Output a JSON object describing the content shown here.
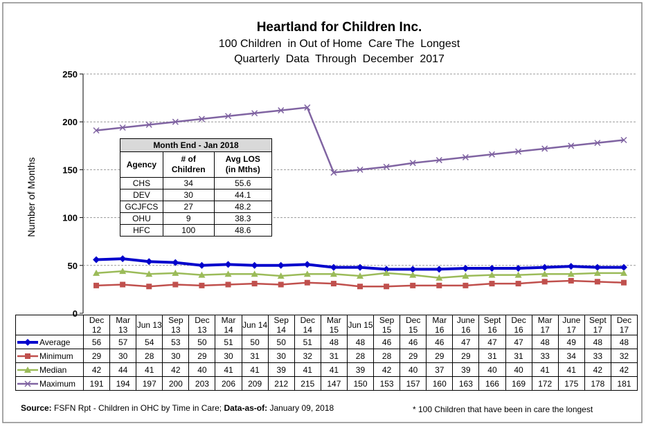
{
  "chart_data": {
    "type": "line",
    "title": "Heartland for Children Inc.",
    "subtitle": [
      "100 Children  in Out of Home  Care The  Longest",
      "Quarterly  Data  Through  December  2017"
    ],
    "y_label": "Number of Months",
    "categories": [
      "Dec\n12",
      "Mar\n13",
      "Jun\n13",
      "Sep\n13",
      "Dec\n13",
      "Mar\n14",
      "Jun\n14",
      "Sep\n14",
      "Dec\n14",
      "Mar\n15",
      "Jun\n15",
      "Sep\n15",
      "Dec\n15",
      "Mar\n16",
      "June\n16",
      "Sept\n16",
      "Dec\n16",
      "Mar\n17",
      "June\n17",
      "Sept\n17",
      "Dec\n17"
    ],
    "series": [
      {
        "name": "Average",
        "color": "#0000cc",
        "marker": "diamond",
        "width": 4,
        "values": [
          56,
          57,
          54,
          53,
          50,
          51,
          50,
          50,
          51,
          48,
          48,
          46,
          46,
          46,
          47,
          47,
          47,
          48,
          49,
          48,
          48
        ]
      },
      {
        "name": "Minimum",
        "color": "#c0504d",
        "marker": "square",
        "width": 2.5,
        "values": [
          29,
          30,
          28,
          30,
          29,
          30,
          31,
          30,
          32,
          31,
          28,
          28,
          29,
          29,
          29,
          31,
          31,
          33,
          34,
          33,
          32
        ]
      },
      {
        "name": "Median",
        "color": "#9bbb59",
        "marker": "triangle",
        "width": 2.5,
        "values": [
          42,
          44,
          41,
          42,
          40,
          41,
          41,
          39,
          41,
          41,
          39,
          42,
          40,
          37,
          39,
          40,
          40,
          41,
          41,
          42,
          42
        ]
      },
      {
        "name": "Maximum",
        "color": "#8064a2",
        "marker": "x",
        "width": 2.5,
        "values": [
          191,
          194,
          197,
          200,
          203,
          206,
          209,
          212,
          215,
          147,
          150,
          153,
          157,
          160,
          163,
          166,
          169,
          172,
          175,
          178,
          181
        ]
      }
    ],
    "ylim": [
      0,
      250
    ],
    "yticks": [
      0,
      50,
      100,
      150,
      200,
      250
    ],
    "grid": true
  },
  "inset_table": {
    "title": "Month End - Jan 2018",
    "headers": [
      "Agency",
      "# of\nChildren",
      "Avg LOS\n(in Mths)"
    ],
    "rows": [
      [
        "CHS",
        34,
        55.6
      ],
      [
        "DEV",
        30,
        44.1
      ],
      [
        "GCJFCS",
        27,
        48.2
      ],
      [
        "OHU",
        9,
        38.3
      ],
      [
        "HFC",
        100,
        48.6
      ]
    ]
  },
  "footer": {
    "source_label": "Source:",
    "source_text": "FSFN Rpt - Children in OHC by Time in Care;",
    "asof_label": "Data-as-of:",
    "asof_text": "January 09, 2018",
    "note": "* 100 Children that have been in care the longest"
  }
}
